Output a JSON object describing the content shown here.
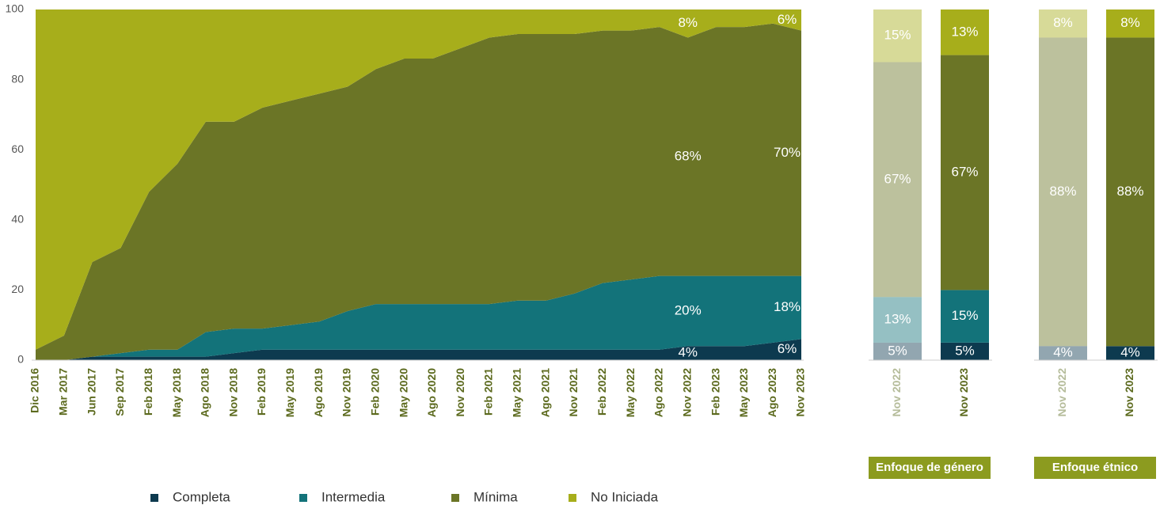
{
  "chart_data": [
    {
      "type": "area",
      "categories": [
        "Dic 2016",
        "Mar 2017",
        "Jun 2017",
        "Sep 2017",
        "Feb 2018",
        "May 2018",
        "Ago 2018",
        "Nov 2018",
        "Feb 2019",
        "May 2019",
        "Ago 2019",
        "Nov 2019",
        "Feb 2020",
        "May 2020",
        "Ago 2020",
        "Nov 2020",
        "Feb 2021",
        "May 2021",
        "Ago 2021",
        "Nov 2021",
        "Feb 2022",
        "May 2022",
        "Ago 2022",
        "Nov 2022",
        "Feb 2023",
        "May 2023",
        "Ago 2023",
        "Nov 2023"
      ],
      "series": [
        {
          "name": "Completa",
          "color": "#0d3a4f",
          "values": [
            0,
            0,
            1,
            1,
            1,
            1,
            1,
            2,
            3,
            3,
            3,
            3,
            3,
            3,
            3,
            3,
            3,
            3,
            3,
            3,
            3,
            3,
            3,
            4,
            4,
            4,
            5,
            6
          ],
          "value_labels": [
            null,
            null,
            null,
            null,
            null,
            null,
            null,
            null,
            null,
            null,
            null,
            null,
            null,
            null,
            null,
            null,
            null,
            null,
            null,
            null,
            null,
            null,
            null,
            "4%",
            null,
            null,
            null,
            "6%"
          ]
        },
        {
          "name": "Intermedia",
          "color": "#13737a",
          "values": [
            0,
            0,
            0,
            1,
            2,
            2,
            7,
            7,
            6,
            7,
            8,
            11,
            13,
            13,
            13,
            13,
            13,
            14,
            14,
            16,
            19,
            20,
            21,
            20,
            20,
            20,
            19,
            18
          ],
          "value_labels": [
            null,
            null,
            null,
            null,
            null,
            null,
            null,
            null,
            null,
            null,
            null,
            null,
            null,
            null,
            null,
            null,
            null,
            null,
            null,
            null,
            null,
            null,
            null,
            "20%",
            null,
            null,
            null,
            "18%"
          ]
        },
        {
          "name": "Mínima",
          "color": "#6b7526",
          "values": [
            3,
            7,
            27,
            30,
            45,
            53,
            60,
            59,
            63,
            64,
            65,
            64,
            67,
            70,
            70,
            73,
            76,
            76,
            76,
            74,
            72,
            71,
            71,
            68,
            71,
            71,
            72,
            70
          ],
          "value_labels": [
            null,
            null,
            null,
            null,
            null,
            null,
            null,
            null,
            null,
            null,
            null,
            null,
            null,
            null,
            null,
            null,
            null,
            null,
            null,
            null,
            null,
            null,
            null,
            "68%",
            null,
            null,
            null,
            "70%"
          ]
        },
        {
          "name": "No Iniciada",
          "color": "#a7ae1b",
          "values": [
            97,
            93,
            72,
            68,
            52,
            44,
            32,
            32,
            28,
            26,
            24,
            22,
            17,
            14,
            14,
            11,
            8,
            7,
            7,
            7,
            6,
            6,
            5,
            8,
            5,
            5,
            4,
            6
          ],
          "value_labels": [
            null,
            null,
            null,
            null,
            null,
            null,
            null,
            null,
            null,
            null,
            null,
            null,
            null,
            null,
            null,
            null,
            null,
            null,
            null,
            null,
            null,
            null,
            null,
            "8%",
            null,
            null,
            null,
            "6%"
          ]
        }
      ],
      "ylim": [
        0,
        100
      ],
      "yticks": [
        0,
        20,
        40,
        60,
        80,
        100
      ]
    },
    {
      "type": "bar",
      "title": "Enfoque de género",
      "categories": [
        "Nov 2022",
        "Nov 2023"
      ],
      "category_opacity": [
        0.45,
        1
      ],
      "series": [
        {
          "name": "Completa",
          "color": "#0d3a4f",
          "values": [
            5,
            5
          ],
          "value_labels": [
            "5%",
            "5%"
          ]
        },
        {
          "name": "Intermedia",
          "color": "#13737a",
          "values": [
            13,
            15
          ],
          "value_labels": [
            "13%",
            "15%"
          ]
        },
        {
          "name": "Mínima",
          "color": "#6b7526",
          "values": [
            67,
            67
          ],
          "value_labels": [
            "67%",
            "67%"
          ]
        },
        {
          "name": "No Iniciada",
          "color": "#a7ae1b",
          "values": [
            15,
            13
          ],
          "value_labels": [
            "15%",
            "13%"
          ]
        }
      ],
      "ylim": [
        0,
        100
      ]
    },
    {
      "type": "bar",
      "title": "Enfoque étnico",
      "categories": [
        "Nov 2022",
        "Nov 2023"
      ],
      "category_opacity": [
        0.45,
        1
      ],
      "series": [
        {
          "name": "Completa",
          "color": "#0d3a4f",
          "values": [
            4,
            4
          ],
          "value_labels": [
            "4%",
            "4%"
          ]
        },
        {
          "name": "Intermedia",
          "color": "#13737a",
          "values": [
            0,
            0
          ],
          "value_labels": [
            null,
            null
          ]
        },
        {
          "name": "Mínima",
          "color": "#6b7526",
          "values": [
            88,
            88
          ],
          "value_labels": [
            "88%",
            "88%"
          ]
        },
        {
          "name": "No Iniciada",
          "color": "#a7ae1b",
          "values": [
            8,
            8
          ],
          "value_labels": [
            "8%",
            "8%"
          ]
        }
      ],
      "ylim": [
        0,
        100
      ]
    }
  ]
}
